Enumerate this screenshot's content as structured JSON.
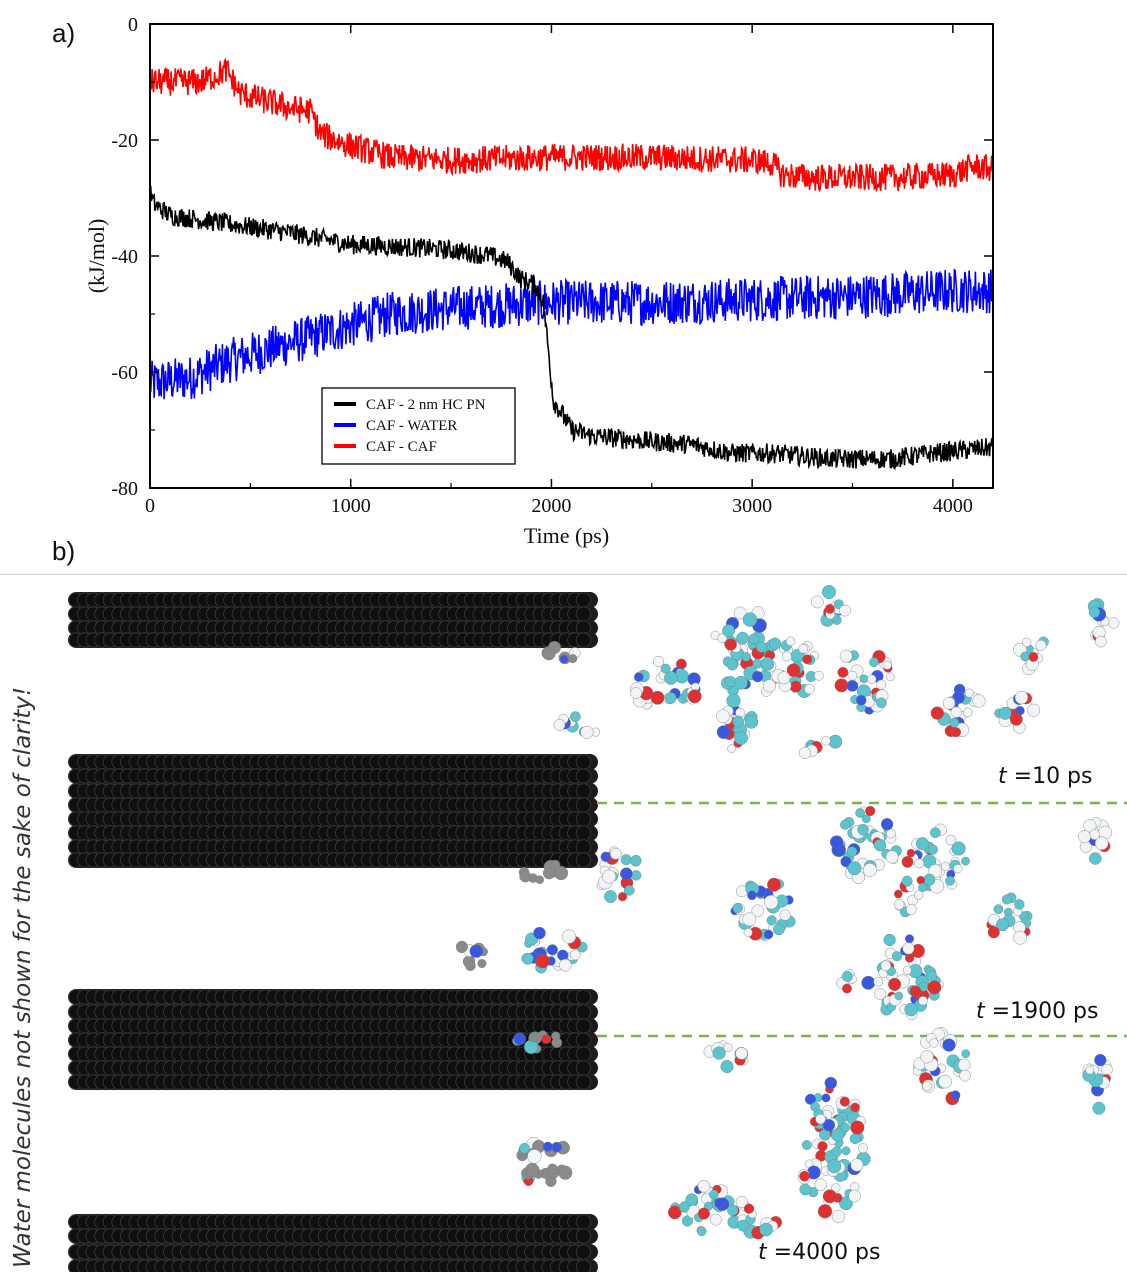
{
  "panels": {
    "a_label": "a)",
    "b_label": "b)"
  },
  "chart_data": {
    "type": "line",
    "xlabel": "Time (ps)",
    "ylabel": "(kJ/mol)",
    "xlim": [
      0,
      4200
    ],
    "ylim": [
      -80,
      0
    ],
    "xticks": [
      0,
      1000,
      2000,
      3000,
      4000
    ],
    "yticks": [
      0,
      -20,
      -40,
      -60,
      -80
    ],
    "grid": false,
    "legend_position": "bottom-center",
    "series": [
      {
        "name": "CAF - 2 nm HC PN",
        "color": "#000000",
        "noise": 1.0,
        "x": [
          0,
          20,
          100,
          300,
          500,
          700,
          1000,
          1300,
          1500,
          1700,
          1780,
          1850,
          1920,
          1960,
          1990,
          2010,
          2050,
          2100,
          2200,
          2500,
          2700,
          2900,
          3100,
          3400,
          3700,
          3900,
          4200
        ],
        "y": [
          -29,
          -31,
          -33,
          -34,
          -35,
          -36,
          -38,
          -38.5,
          -39,
          -40,
          -41,
          -44,
          -45,
          -48,
          -58,
          -65,
          -67,
          -70,
          -71,
          -72,
          -72.5,
          -74,
          -74,
          -75,
          -75,
          -74,
          -73
        ]
      },
      {
        "name": "CAF - WATER",
        "color": "#0000ff",
        "noise": 2.3,
        "x": [
          0,
          200,
          400,
          600,
          800,
          1000,
          1200,
          1500,
          2000,
          2500,
          3000,
          3500,
          4000,
          4200
        ],
        "y": [
          -62,
          -61,
          -58,
          -56,
          -54,
          -52,
          -50,
          -49,
          -48,
          -48,
          -47.5,
          -47,
          -46,
          -46
        ]
      },
      {
        "name": "CAF - CAF",
        "color": "#ff0000",
        "noise": 1.4,
        "x": [
          0,
          250,
          320,
          380,
          450,
          550,
          700,
          800,
          850,
          1000,
          1200,
          1500,
          2000,
          2500,
          3000,
          3100,
          3150,
          3300,
          3700,
          4000,
          4100,
          4200
        ],
        "y": [
          -10,
          -10,
          -9,
          -8,
          -12,
          -13,
          -14.5,
          -15,
          -19,
          -21,
          -23,
          -23.5,
          -23,
          -23,
          -23.5,
          -24,
          -26,
          -26.5,
          -26.5,
          -26,
          -24.5,
          -25
        ]
      }
    ]
  },
  "panel_b": {
    "side_note": "Water molecules not shown for the sake of clarity!",
    "frames": [
      {
        "t_symbol": "t",
        "t_value": "=10 ps"
      },
      {
        "t_symbol": "t",
        "t_value": "=1900 ps"
      },
      {
        "t_symbol": "t",
        "t_value": "=4000 ps"
      }
    ],
    "colors": {
      "graphene": "#1c1c1c",
      "divider": "#7ab648",
      "carbon": "#5cc4cc",
      "nitrogen": "#3a57e0",
      "oxygen": "#e03030",
      "hydrogen": "#f2f4f6",
      "grey_atom": "#8a8a8a"
    }
  }
}
